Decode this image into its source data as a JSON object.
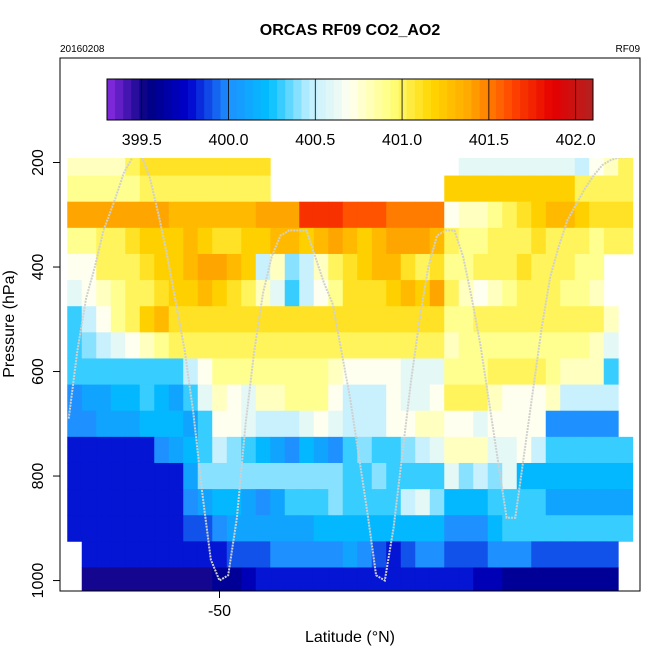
{
  "chart_data": {
    "type": "heatmap",
    "title": "ORCAS RF09 CO2_AO2",
    "subtitle_left": "20160208",
    "subtitle_right": "RF09",
    "xlabel": "Latitude (°N)",
    "ylabel": "Pressure (hPa)",
    "x_ticks": [
      -50
    ],
    "y_ticks": [
      200,
      400,
      600,
      800,
      1000
    ],
    "xlim": [
      -55.5,
      -35.5
    ],
    "ylim": [
      1020,
      0
    ],
    "y_reversed": true,
    "grid": false,
    "colorbar": {
      "placement": "top-inside",
      "range": [
        399.3,
        402.1
      ],
      "ticks": [
        399.5,
        400.0,
        400.5,
        401.0,
        401.5,
        402.0
      ],
      "tick_labels": [
        "399.5",
        "400.0",
        "400.5",
        "401.0",
        "401.5",
        "402.0"
      ],
      "colors": [
        "#8a2be2",
        "#000080",
        "#0000cd",
        "#1e90ff",
        "#00bfff",
        "#bfefff",
        "#fffff0",
        "#ffff80",
        "#ffd700",
        "#ffa500",
        "#ff4500",
        "#e60000",
        "#b22222"
      ]
    },
    "x": [
      -55,
      -54.5,
      -54,
      -53.5,
      -53,
      -52.5,
      -52,
      -51.5,
      -51,
      -50.5,
      -50,
      -49.5,
      -49,
      -48.5,
      -48,
      -47.5,
      -47,
      -46.5,
      -46,
      -45.5,
      -45,
      -44.5,
      -44,
      -43.5,
      -43,
      -42.5,
      -42,
      -41.5,
      -41,
      -40.5,
      -40,
      -39.5,
      -39,
      -38.5,
      -38,
      -37.5,
      -37,
      -36.5,
      -36
    ],
    "y": [
      150,
      200,
      250,
      300,
      350,
      400,
      450,
      500,
      550,
      600,
      650,
      700,
      750,
      800,
      850,
      900,
      950,
      1000
    ],
    "z": [
      [
        null,
        null,
        400.3,
        400.3,
        400.3,
        400.3,
        null,
        null,
        null,
        null,
        null,
        null,
        null,
        null,
        null,
        null,
        null,
        null,
        null,
        null,
        null,
        null,
        null,
        null,
        null,
        null,
        null,
        null,
        null,
        null,
        null,
        null,
        null,
        null,
        null,
        401.5,
        401.5,
        401.3,
        401.5,
        401.0
      ],
      [
        400.8,
        400.8,
        400.8,
        400.8,
        401.0,
        401.1,
        401.1,
        401.1,
        401.1,
        401.1,
        401.1,
        401.1,
        401.1,
        401.1,
        null,
        null,
        null,
        null,
        null,
        null,
        null,
        null,
        null,
        null,
        null,
        null,
        null,
        400.6,
        400.6,
        400.6,
        400.6,
        400.6,
        400.6,
        400.6,
        400.6,
        400.5,
        400.7,
        400.8,
        401.0
      ],
      [
        400.9,
        400.9,
        400.9,
        400.9,
        400.9,
        401.0,
        401.0,
        401.0,
        401.0,
        401.0,
        401.0,
        401.0,
        401.0,
        401.0,
        null,
        null,
        null,
        null,
        null,
        null,
        null,
        null,
        null,
        null,
        null,
        null,
        401.2,
        401.2,
        401.2,
        401.2,
        401.2,
        401.2,
        401.2,
        401.2,
        401.2,
        401.0,
        401.0,
        401.0,
        401.0
      ],
      [
        401.4,
        401.4,
        401.4,
        401.4,
        401.4,
        401.4,
        401.4,
        401.3,
        401.3,
        401.3,
        401.3,
        401.3,
        401.3,
        401.4,
        401.4,
        401.4,
        401.7,
        401.7,
        401.7,
        401.6,
        401.6,
        401.6,
        401.5,
        401.5,
        401.5,
        401.5,
        400.7,
        400.8,
        400.8,
        400.9,
        401.0,
        401.1,
        401.2,
        401.3,
        401.3,
        401.2,
        401.1,
        401.1,
        401.1
      ],
      [
        400.9,
        400.9,
        401.0,
        401.0,
        401.1,
        401.2,
        401.2,
        401.2,
        401.3,
        401.2,
        401.1,
        401.1,
        401.2,
        401.2,
        401.3,
        401.3,
        401.2,
        401.3,
        401.4,
        401.3,
        401.2,
        401.3,
        401.4,
        401.4,
        401.4,
        401.3,
        401.0,
        400.9,
        400.9,
        401.0,
        401.0,
        401.0,
        401.1,
        401.0,
        401.0,
        401.0,
        400.9,
        401.0,
        401.0
      ],
      [
        400.7,
        400.7,
        401.0,
        401.0,
        401.0,
        401.1,
        401.2,
        401.2,
        401.3,
        401.4,
        401.4,
        401.3,
        401.2,
        400.5,
        400.8,
        400.4,
        400.5,
        400.8,
        401.0,
        401.1,
        401.2,
        401.3,
        401.3,
        401.1,
        401.0,
        401.1,
        400.9,
        400.9,
        401.0,
        401.0,
        401.0,
        401.1,
        401.0,
        401.0,
        401.0,
        400.9,
        400.9,
        null,
        null
      ],
      [
        400.6,
        400.7,
        400.8,
        400.9,
        401.0,
        401.0,
        401.1,
        401.2,
        401.2,
        401.3,
        401.2,
        401.1,
        401.0,
        400.8,
        400.6,
        400.3,
        400.5,
        400.7,
        400.9,
        401.1,
        401.1,
        401.1,
        401.2,
        401.3,
        401.2,
        401.4,
        401.0,
        400.8,
        400.7,
        400.8,
        400.9,
        401.0,
        401.0,
        401.0,
        400.9,
        400.9,
        400.8,
        null,
        null
      ],
      [
        400.3,
        400.5,
        400.7,
        400.9,
        401.0,
        401.2,
        401.3,
        401.1,
        401.1,
        401.1,
        401.1,
        401.1,
        401.1,
        401.1,
        401.1,
        401.1,
        401.1,
        401.1,
        401.1,
        401.1,
        401.1,
        401.1,
        401.1,
        401.1,
        401.1,
        401.1,
        400.9,
        400.9,
        401.0,
        401.0,
        401.0,
        401.0,
        401.0,
        401.0,
        401.0,
        401.0,
        401.0,
        400.8,
        null
      ],
      [
        400.3,
        400.4,
        400.5,
        400.6,
        400.7,
        400.8,
        400.9,
        401.0,
        401.0,
        401.0,
        401.0,
        401.0,
        401.0,
        401.0,
        401.0,
        401.0,
        401.0,
        401.0,
        401.0,
        401.0,
        401.0,
        401.0,
        401.0,
        401.0,
        401.0,
        401.0,
        400.8,
        400.9,
        400.9,
        400.9,
        400.9,
        400.9,
        400.9,
        400.9,
        400.9,
        400.9,
        400.8,
        400.6,
        null
      ],
      [
        400.3,
        400.3,
        400.3,
        400.3,
        400.3,
        400.3,
        400.3,
        400.3,
        400.5,
        400.7,
        400.9,
        400.9,
        400.9,
        400.9,
        400.9,
        400.9,
        400.9,
        400.9,
        400.8,
        400.7,
        400.7,
        400.7,
        400.7,
        400.6,
        400.6,
        400.6,
        400.9,
        400.9,
        400.9,
        401.0,
        401.0,
        401.0,
        401.0,
        400.9,
        400.8,
        400.8,
        400.8,
        400.3,
        null
      ],
      [
        400.0,
        400.1,
        400.1,
        400.2,
        400.2,
        400.3,
        400.2,
        400.1,
        400.3,
        400.6,
        400.8,
        400.7,
        400.6,
        400.8,
        400.8,
        400.9,
        400.9,
        400.9,
        400.7,
        400.5,
        400.5,
        400.5,
        400.7,
        400.6,
        400.6,
        400.7,
        401.0,
        401.0,
        401.0,
        400.8,
        400.7,
        400.7,
        400.7,
        400.8,
        400.5,
        400.5,
        400.5,
        400.5,
        null
      ],
      [
        400.0,
        400.0,
        400.1,
        400.1,
        400.1,
        400.2,
        400.2,
        400.2,
        400.1,
        400.3,
        400.7,
        400.7,
        400.6,
        400.5,
        400.5,
        400.5,
        400.6,
        400.7,
        400.6,
        400.5,
        400.5,
        400.5,
        400.7,
        400.7,
        400.8,
        400.8,
        400.7,
        400.7,
        400.6,
        400.7,
        400.7,
        400.7,
        400.7,
        400.0,
        400.0,
        400.0,
        400.0,
        400.0,
        null
      ],
      [
        399.8,
        399.8,
        399.8,
        399.8,
        399.8,
        399.8,
        400.0,
        400.1,
        400.2,
        400.3,
        400.5,
        400.4,
        400.3,
        400.2,
        400.1,
        400.0,
        400.2,
        400.1,
        400.0,
        400.3,
        400.4,
        400.3,
        400.3,
        400.4,
        400.5,
        400.6,
        400.8,
        400.8,
        400.8,
        400.6,
        400.6,
        400.7,
        400.5,
        400.3,
        400.3,
        400.3,
        400.3,
        400.3,
        400.3
      ],
      [
        399.8,
        399.8,
        399.8,
        399.8,
        399.8,
        399.8,
        399.8,
        399.8,
        400.1,
        400.4,
        400.4,
        400.4,
        400.4,
        400.4,
        400.4,
        400.4,
        400.4,
        400.4,
        400.4,
        400.3,
        400.3,
        400.4,
        400.3,
        400.3,
        400.3,
        400.3,
        400.6,
        400.4,
        400.5,
        400.4,
        400.6,
        400.2,
        400.2,
        400.2,
        400.2,
        400.2,
        400.2,
        400.2,
        400.2
      ],
      [
        399.8,
        399.8,
        399.8,
        399.8,
        399.8,
        399.8,
        399.8,
        399.8,
        400.0,
        400.1,
        400.2,
        400.2,
        400.1,
        400.0,
        400.1,
        400.3,
        400.3,
        400.3,
        400.4,
        400.3,
        400.3,
        400.3,
        400.3,
        400.5,
        400.6,
        400.4,
        400.2,
        400.2,
        400.2,
        400.3,
        400.3,
        400.3,
        400.3,
        400.1,
        400.1,
        400.1,
        400.1,
        400.1,
        400.1
      ],
      [
        399.8,
        399.8,
        399.8,
        399.8,
        399.8,
        399.8,
        399.8,
        399.8,
        399.9,
        399.9,
        400.0,
        400.1,
        400.1,
        400.1,
        400.1,
        400.1,
        400.1,
        400.2,
        400.2,
        400.2,
        400.2,
        400.2,
        400.2,
        400.2,
        400.2,
        400.2,
        400.0,
        400.0,
        400.0,
        400.2,
        400.3,
        400.3,
        400.3,
        400.3,
        400.3,
        400.3,
        400.3,
        400.3,
        400.3
      ],
      [
        null,
        399.8,
        399.8,
        399.8,
        399.8,
        399.8,
        399.8,
        399.8,
        399.8,
        399.8,
        399.8,
        399.9,
        399.9,
        399.9,
        400.0,
        400.0,
        400.0,
        400.0,
        400.0,
        400.1,
        400.0,
        399.9,
        399.8,
        399.9,
        400.0,
        400.0,
        399.9,
        399.9,
        399.9,
        400.0,
        400.0,
        400.0,
        399.9,
        399.9,
        399.9,
        399.9,
        399.9,
        399.9,
        null
      ],
      [
        null,
        399.5,
        399.5,
        399.5,
        399.5,
        399.5,
        399.5,
        399.5,
        399.5,
        399.5,
        399.6,
        399.6,
        399.7,
        399.8,
        399.8,
        399.8,
        399.8,
        399.8,
        399.8,
        399.8,
        399.8,
        399.8,
        399.8,
        399.8,
        399.8,
        399.8,
        399.8,
        399.8,
        399.7,
        399.7,
        399.6,
        399.6,
        399.6,
        399.6,
        399.6,
        399.6,
        399.6,
        399.6,
        null
      ]
    ],
    "flight_track": {
      "latitude": [
        -55.2,
        -54.9,
        -54.6,
        -54.3,
        -54.0,
        -53.6,
        -53.3,
        -53.0,
        -52.7,
        -52.4,
        -52.1,
        -51.8,
        -51.5,
        -51.2,
        -50.9,
        -50.6,
        -50.3,
        -50.0,
        -49.7,
        -49.4,
        -49.1,
        -48.8,
        -48.5,
        -48.2,
        -47.9,
        -47.6,
        -47.3,
        -47.0,
        -46.7,
        -46.4,
        -46.1,
        -45.8,
        -45.5,
        -45.2,
        -44.9,
        -44.6,
        -44.3,
        -44.0,
        -43.7,
        -43.4,
        -43.1,
        -42.8,
        -42.5,
        -42.2,
        -41.9,
        -41.6,
        -41.3,
        -41.0,
        -40.7,
        -40.4,
        -40.1,
        -39.8,
        -39.5,
        -39.2,
        -38.9,
        -38.6,
        -38.3,
        -38.0,
        -37.7,
        -37.4,
        -37.1,
        -36.8,
        -36.5,
        -36.2,
        -35.9
      ],
      "pressure": [
        690,
        560,
        460,
        400,
        330,
        270,
        220,
        190,
        185,
        230,
        300,
        380,
        470,
        560,
        680,
        830,
        960,
        1000,
        990,
        880,
        700,
        560,
        450,
        380,
        340,
        330,
        330,
        330,
        380,
        430,
        470,
        560,
        650,
        760,
        870,
        990,
        1000,
        900,
        760,
        620,
        500,
        400,
        340,
        330,
        330,
        380,
        460,
        550,
        660,
        770,
        880,
        880,
        760,
        640,
        520,
        420,
        360,
        310,
        280,
        250,
        225,
        205,
        195,
        190,
        190
      ]
    }
  }
}
